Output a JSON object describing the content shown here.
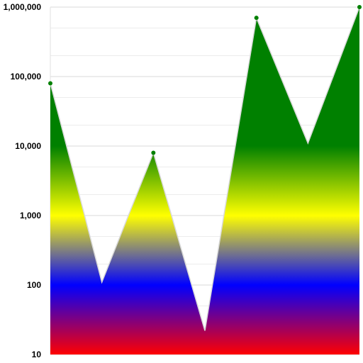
{
  "chart_data": {
    "type": "area",
    "title": "",
    "xlabel": "",
    "ylabel": "",
    "y_scale": "log",
    "ylim": [
      10,
      1000000
    ],
    "x": [
      1,
      2,
      3,
      4,
      5,
      6,
      7
    ],
    "series": [
      {
        "values": [
          80000,
          110,
          8000,
          22,
          700000,
          11000,
          1000000
        ]
      }
    ],
    "y_ticks": [
      {
        "value": 10,
        "label": "10"
      },
      {
        "value": 100,
        "label": "100"
      },
      {
        "value": 1000,
        "label": "1,000"
      },
      {
        "value": 10000,
        "label": "10,000"
      },
      {
        "value": 100000,
        "label": "100,000"
      },
      {
        "value": 1000000,
        "label": "1,000,000"
      }
    ],
    "grid": true,
    "legend": "none",
    "marker_indices": [
      0,
      2,
      4,
      6
    ],
    "colors": {
      "gradient_stops": [
        {
          "value": 10,
          "color": "#ff0000"
        },
        {
          "value": 100,
          "color": "#0000ff"
        },
        {
          "value": 1000,
          "color": "#ffff00"
        },
        {
          "value": 10000,
          "color": "#008000"
        }
      ],
      "marker": "#008000",
      "outline": "#d9d9d9",
      "grid_major": "#d8d8d8",
      "grid_minor": "#ececec"
    }
  }
}
